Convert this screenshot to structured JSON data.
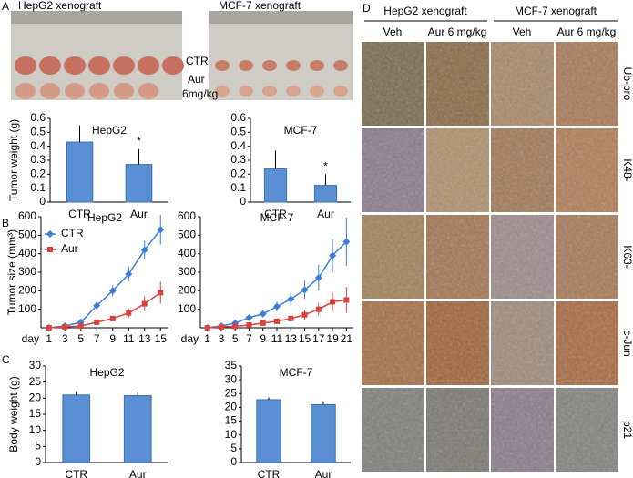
{
  "panel_labels": [
    "A",
    "B",
    "C",
    "D"
  ],
  "photos": {
    "titles": [
      "HepG2 xenograft",
      "MCF-7 xenograft"
    ],
    "row_labels": [
      "CTR",
      "Aur",
      "6mg/kg"
    ]
  },
  "histology": {
    "groups": [
      "HepG2 xenograft",
      "MCF-7 xenograft"
    ],
    "columns": [
      "Veh",
      "Aur 6 mg/kg",
      "Veh",
      "Aur 6 mg/kg"
    ],
    "rows": [
      "Ub-pro",
      "K48-",
      "K63-",
      "c-Jun",
      "p21"
    ]
  },
  "chart_data": [
    {
      "type": "bar",
      "title": "HepG2",
      "ylabel": "Tumor weight (g)",
      "categories": [
        "CTR",
        "Aur"
      ],
      "values": [
        0.43,
        0.27
      ],
      "errors": [
        0.12,
        0.11
      ],
      "significance": [
        null,
        "*"
      ],
      "color": "#5b8fd4",
      "ylim": [
        0,
        0.6
      ],
      "yticks": [
        0,
        0.1,
        0.2,
        0.3,
        0.4,
        0.5,
        0.6
      ]
    },
    {
      "type": "bar",
      "title": "MCF-7",
      "categories": [
        "CTR",
        "Aur"
      ],
      "values": [
        0.24,
        0.12
      ],
      "errors": [
        0.13,
        0.08
      ],
      "significance": [
        null,
        "*"
      ],
      "color": "#5b8fd4",
      "ylim": [
        0,
        0.6
      ],
      "yticks": [
        0,
        0.1,
        0.2,
        0.3,
        0.4,
        0.5,
        0.6
      ]
    },
    {
      "type": "line",
      "title": "HepG2",
      "ylabel": "Tumor size (mm³)",
      "xlabel": "day",
      "x": [
        1,
        3,
        5,
        7,
        9,
        11,
        13,
        15
      ],
      "xlim": [
        0,
        16
      ],
      "xticks": [
        1,
        3,
        5,
        7,
        9,
        11,
        13,
        15
      ],
      "ylim": [
        0,
        600
      ],
      "yticks": [
        100,
        200,
        300,
        400,
        500,
        600
      ],
      "legend": "upper left",
      "series": [
        {
          "name": "CTR",
          "color": "#3b7dd8",
          "marker": "diamond",
          "values": [
            0,
            10,
            30,
            120,
            200,
            290,
            420,
            530
          ],
          "errors": [
            0,
            5,
            10,
            20,
            30,
            40,
            50,
            80
          ]
        },
        {
          "name": "Aur",
          "color": "#d9423f",
          "marker": "square",
          "values": [
            0,
            5,
            10,
            30,
            50,
            80,
            130,
            190
          ],
          "errors": [
            0,
            3,
            5,
            10,
            15,
            25,
            40,
            60
          ]
        }
      ]
    },
    {
      "type": "line",
      "title": "MCF-7",
      "xlabel": "day",
      "x": [
        1,
        3,
        5,
        7,
        9,
        11,
        13,
        15,
        17,
        19,
        21
      ],
      "xlim": [
        0,
        22
      ],
      "xticks": [
        1,
        3,
        5,
        7,
        9,
        11,
        13,
        15,
        17,
        19,
        21
      ],
      "ylim": [
        0,
        600
      ],
      "yticks": [
        100,
        200,
        300,
        400,
        500,
        600
      ],
      "series": [
        {
          "name": "CTR",
          "color": "#3b7dd8",
          "marker": "diamond",
          "values": [
            0,
            10,
            25,
            55,
            75,
            115,
            155,
            205,
            270,
            390,
            465
          ],
          "errors": [
            0,
            5,
            8,
            12,
            15,
            25,
            35,
            50,
            70,
            90,
            130
          ]
        },
        {
          "name": "Aur",
          "color": "#d9423f",
          "marker": "square",
          "values": [
            0,
            5,
            8,
            15,
            25,
            35,
            50,
            70,
            100,
            140,
            150
          ],
          "errors": [
            0,
            3,
            4,
            6,
            8,
            12,
            15,
            25,
            35,
            50,
            70
          ]
        }
      ]
    },
    {
      "type": "bar",
      "title": "HepG2",
      "ylabel": "Body weight (g)",
      "categories": [
        "CTR",
        "Aur"
      ],
      "values": [
        21,
        20.8
      ],
      "errors": [
        1.2,
        1.0
      ],
      "color": "#5b8fd4",
      "ylim": [
        0,
        30
      ],
      "yticks": [
        0,
        5,
        10,
        15,
        20,
        25,
        30
      ]
    },
    {
      "type": "bar",
      "title": "MCF-7",
      "categories": [
        "CTR",
        "Aur"
      ],
      "values": [
        22.8,
        21
      ],
      "errors": [
        0.8,
        1.2
      ],
      "color": "#5b8fd4",
      "ylim": [
        0,
        35
      ],
      "yticks": [
        0,
        5,
        10,
        15,
        20,
        25,
        30,
        35
      ]
    }
  ]
}
